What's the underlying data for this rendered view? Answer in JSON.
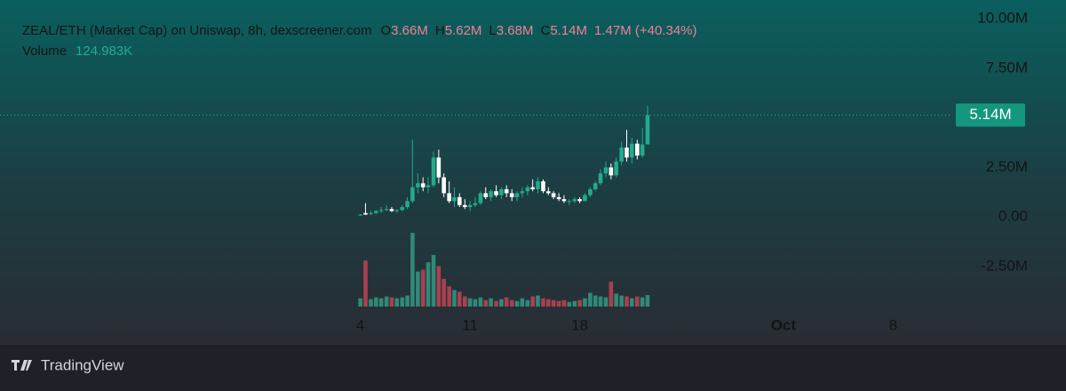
{
  "chart_data": {
    "type": "candlestick",
    "title": "ZEAL/ETH (Market Cap) on Uniswap, 8h, dexscreener.com",
    "ohlc_legend": {
      "open_label": "O",
      "open": "3.66M",
      "high_label": "H",
      "high": "5.62M",
      "low_label": "L",
      "low": "3.68M",
      "close_label": "C",
      "close": "5.14M",
      "change": "1.47M (+40.34%)"
    },
    "volume_label": "Volume",
    "volume_value": "124.983K",
    "last_price": {
      "value": 5140000,
      "label": "5.14M"
    },
    "x": [
      4,
      4.33,
      4.67,
      5,
      5.33,
      5.67,
      6,
      6.33,
      6.67,
      7,
      7.33,
      7.67,
      8,
      8.33,
      8.67,
      9,
      9.33,
      9.67,
      10,
      10.33,
      10.67,
      11,
      11.33,
      11.67,
      12,
      12.33,
      12.67,
      13,
      13.33,
      13.67,
      14,
      14.33,
      14.67,
      15,
      15.33,
      15.67,
      16,
      16.33,
      16.67,
      17,
      17.33,
      17.67,
      18,
      18.33,
      18.67,
      19,
      19.33,
      19.67,
      20,
      20.33,
      20.67,
      21,
      21.33,
      21.67,
      22,
      22.33
    ],
    "open": [
      100000,
      200000,
      150000,
      200000,
      300000,
      350000,
      400000,
      300000,
      350000,
      500000,
      800000,
      1500000,
      1700000,
      1500000,
      1600000,
      3000000,
      2000000,
      1200000,
      800000,
      1000000,
      600000,
      500000,
      600000,
      700000,
      1200000,
      1000000,
      1300000,
      1100000,
      1400000,
      1200000,
      1000000,
      1200000,
      1300000,
      1500000,
      1400000,
      1800000,
      1300000,
      1200000,
      1000000,
      900000,
      800000,
      800000,
      900000,
      800000,
      1100000,
      1400000,
      1700000,
      2200000,
      2500000,
      2100000,
      2800000,
      3500000,
      3000000,
      3700000,
      3100000,
      3660000
    ],
    "high": [
      150000,
      700000,
      300000,
      350000,
      500000,
      600000,
      500000,
      400000,
      600000,
      1000000,
      3900000,
      2200000,
      2000000,
      2000000,
      3300000,
      3400000,
      2200000,
      1800000,
      1500000,
      1200000,
      900000,
      800000,
      1000000,
      1300000,
      1500000,
      1400000,
      1600000,
      1500000,
      1600000,
      1400000,
      1300000,
      1500000,
      1600000,
      1900000,
      2000000,
      1900000,
      1500000,
      1300000,
      1200000,
      1100000,
      900000,
      1000000,
      1000000,
      1200000,
      1500000,
      1800000,
      2400000,
      2800000,
      2700000,
      3000000,
      3800000,
      4400000,
      4000000,
      3900000,
      4500000,
      5620000
    ],
    "low": [
      50000,
      100000,
      100000,
      150000,
      200000,
      300000,
      250000,
      200000,
      300000,
      400000,
      700000,
      1200000,
      1300000,
      1200000,
      1500000,
      1700000,
      1000000,
      700000,
      500000,
      500000,
      400000,
      300000,
      500000,
      600000,
      900000,
      800000,
      1000000,
      900000,
      1000000,
      800000,
      800000,
      1000000,
      1100000,
      1300000,
      1200000,
      1200000,
      1100000,
      900000,
      800000,
      700000,
      600000,
      700000,
      700000,
      800000,
      1000000,
      1300000,
      1600000,
      2000000,
      1900000,
      2000000,
      2600000,
      2800000,
      2700000,
      2900000,
      3000000,
      3680000
    ],
    "close": [
      120000,
      120000,
      200000,
      300000,
      350000,
      400000,
      300000,
      350000,
      500000,
      800000,
      1500000,
      1700000,
      1500000,
      1600000,
      3000000,
      2000000,
      1200000,
      800000,
      1000000,
      600000,
      500000,
      600000,
      700000,
      1200000,
      1000000,
      1300000,
      1100000,
      1400000,
      1200000,
      1000000,
      1200000,
      1300000,
      1500000,
      1400000,
      1800000,
      1300000,
      1200000,
      1000000,
      900000,
      800000,
      800000,
      900000,
      800000,
      1100000,
      1400000,
      1700000,
      2200000,
      2500000,
      2100000,
      2800000,
      3500000,
      3000000,
      3700000,
      3100000,
      3660000,
      5140000
    ],
    "volume": [
      90000,
      500000,
      80000,
      100000,
      90000,
      110000,
      100000,
      90000,
      100000,
      120000,
      800000,
      380000,
      400000,
      480000,
      560000,
      440000,
      300000,
      220000,
      180000,
      160000,
      110000,
      90000,
      80000,
      100000,
      70000,
      90000,
      60000,
      80000,
      100000,
      70000,
      60000,
      90000,
      70000,
      110000,
      120000,
      90000,
      80000,
      70000,
      60000,
      70000,
      50000,
      60000,
      70000,
      90000,
      150000,
      120000,
      110000,
      100000,
      270000,
      140000,
      120000,
      110000,
      90000,
      110000,
      100000,
      124983
    ],
    "up_color": "#22ab8c",
    "down_color": "#ffffff",
    "volume_up_color": "#2f8a78",
    "volume_down_color": "#a8404e",
    "xlim": [
      -19,
      41.1
    ],
    "xticks": [
      4,
      11,
      18,
      {
        "value": 31,
        "label": "Oct"
      },
      {
        "value": 38,
        "label": "8"
      }
    ],
    "ylim": [
      -6450000,
      10950000
    ],
    "yticks": [
      {
        "value": -2500000,
        "label": "-2.50M"
      },
      {
        "value": 0,
        "label": "0.00"
      },
      {
        "value": 2500000,
        "label": "2.50M"
      },
      {
        "value": 7500000,
        "label": "7.50M"
      },
      {
        "value": 10000000,
        "label": "10.00M"
      }
    ],
    "brand": "TradingView"
  }
}
